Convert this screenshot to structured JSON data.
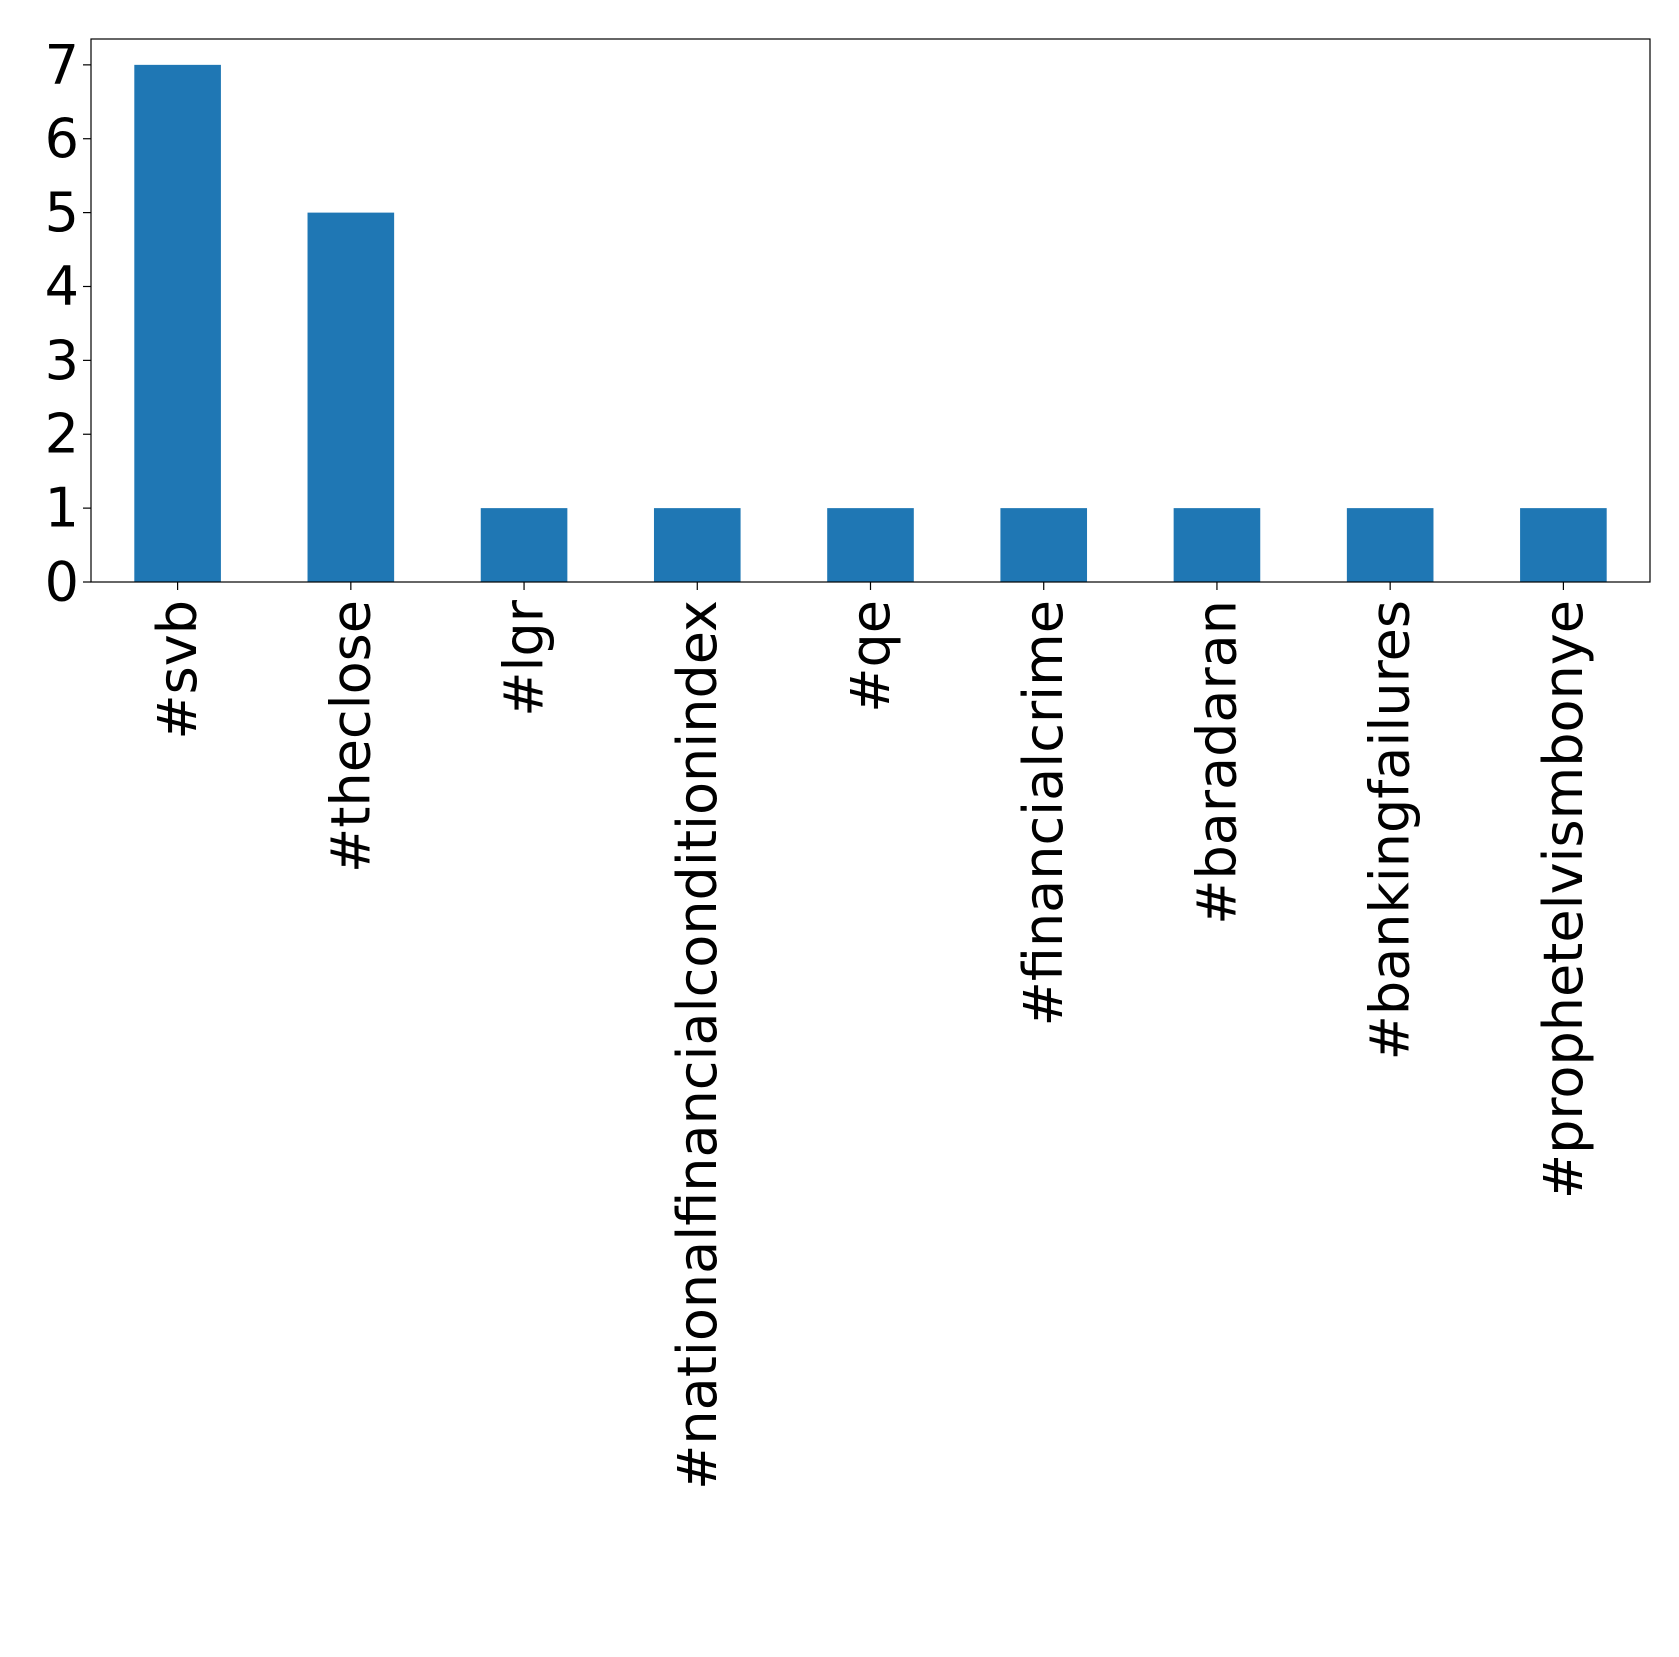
{
  "chart_data": {
    "type": "bar",
    "categories": [
      "#svb",
      "#theclose",
      "#lgr",
      "#nationalfinancialconditionindex",
      "#qe",
      "#financialcrime",
      "#baradaran",
      "#bankingfailures",
      "#prophetelvismbonye"
    ],
    "values": [
      7,
      5,
      1,
      1,
      1,
      1,
      1,
      1,
      1
    ],
    "title": "",
    "xlabel": "",
    "ylabel": "",
    "ylim": [
      0,
      7.35
    ],
    "yticks": [
      0,
      1,
      2,
      3,
      4,
      5,
      6,
      7
    ],
    "grid": false,
    "legend": "none",
    "bar_color": "#1f77b4"
  }
}
